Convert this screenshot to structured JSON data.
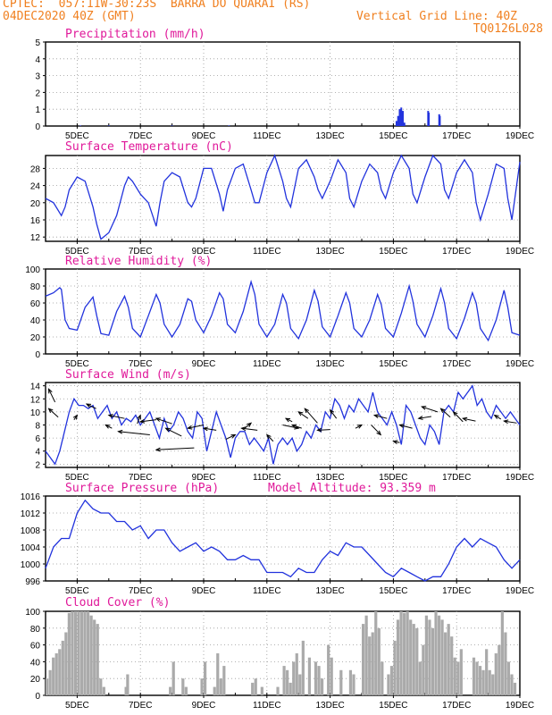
{
  "header": {
    "line1_left": "CPTEC:  057:11W-30:23S  BARRA DO QUARAI (RS)",
    "line2_left": "04DEC2020 40Z (GMT)",
    "line2_right": "Vertical Grid Line: 40Z",
    "line3_right": "TQ0126L028"
  },
  "colors": {
    "line": "#2233dd",
    "bar_precip": "#2233dd",
    "bar_cloud": "#aaaaaa",
    "title": "#e0199a",
    "header": "#f08020"
  },
  "x_axis": {
    "ticks": [
      5,
      7,
      9,
      11,
      13,
      15,
      17,
      19
    ],
    "tick_labels": [
      "5DEC",
      "7DEC",
      "9DEC",
      "11DEC",
      "13DEC",
      "15DEC",
      "17DEC",
      "19DEC"
    ],
    "range": [
      4.0,
      19.0
    ]
  },
  "chart_data": [
    {
      "id": "precip",
      "type": "bar",
      "title": "Precipitation (mm/h)",
      "ylim": [
        0,
        5
      ],
      "yticks": [
        0,
        1,
        2,
        3,
        4,
        5
      ],
      "grid": true,
      "x": [
        5.1,
        6.0,
        8.0,
        9.8,
        15.1,
        15.15,
        15.2,
        15.25,
        15.3,
        15.35,
        16.1,
        16.12,
        16.45,
        16.47
      ],
      "values": [
        0.03,
        0.03,
        0.03,
        0.03,
        0.3,
        0.6,
        1.0,
        1.1,
        0.9,
        0.2,
        0.9,
        0.8,
        0.7,
        0.6
      ]
    },
    {
      "id": "temp",
      "type": "line",
      "title": "Surface Temperature (nC)",
      "ylim": [
        11,
        31
      ],
      "yticks": [
        12,
        16,
        20,
        24,
        28
      ],
      "grid": true,
      "x": [
        4.0,
        4.25,
        4.5,
        4.62,
        4.75,
        5.0,
        5.25,
        5.5,
        5.62,
        5.75,
        6.0,
        6.25,
        6.5,
        6.62,
        6.75,
        7.0,
        7.25,
        7.5,
        7.62,
        7.75,
        8.0,
        8.25,
        8.5,
        8.62,
        8.75,
        9.0,
        9.25,
        9.5,
        9.62,
        9.75,
        10.0,
        10.25,
        10.5,
        10.62,
        10.75,
        11.0,
        11.25,
        11.5,
        11.62,
        11.75,
        12.0,
        12.25,
        12.5,
        12.62,
        12.75,
        13.0,
        13.25,
        13.5,
        13.62,
        13.75,
        14.0,
        14.25,
        14.5,
        14.62,
        14.75,
        15.0,
        15.25,
        15.5,
        15.62,
        15.75,
        16.0,
        16.25,
        16.5,
        16.62,
        16.75,
        17.0,
        17.25,
        17.5,
        17.62,
        17.75,
        18.0,
        18.25,
        18.5,
        18.62,
        18.75,
        19.0
      ],
      "y": [
        21,
        20,
        17,
        19,
        23,
        26,
        25,
        19,
        15,
        11.5,
        13,
        17,
        24,
        26,
        25,
        22,
        20,
        14.5,
        20,
        25,
        27,
        26,
        20,
        19,
        21,
        28,
        28,
        22,
        18,
        23,
        28,
        29,
        23,
        20,
        20,
        27,
        31,
        25,
        21,
        19,
        28,
        30,
        26,
        23,
        21,
        25,
        30,
        27,
        21,
        19,
        25,
        29,
        27,
        23,
        21,
        27,
        31,
        28,
        22,
        20,
        26,
        31,
        29,
        23,
        21,
        27,
        30,
        27,
        20,
        16,
        22,
        29,
        28,
        21,
        16,
        29.5
      ]
    },
    {
      "id": "rh",
      "type": "line",
      "title": "Relative Humidity (%)",
      "ylim": [
        0,
        100
      ],
      "yticks": [
        0,
        20,
        40,
        60,
        80,
        100
      ],
      "grid": true,
      "x": [
        4.0,
        4.25,
        4.45,
        4.5,
        4.62,
        4.75,
        5.0,
        5.25,
        5.5,
        5.62,
        5.75,
        6.0,
        6.25,
        6.5,
        6.62,
        6.75,
        7.0,
        7.25,
        7.5,
        7.62,
        7.75,
        8.0,
        8.25,
        8.5,
        8.62,
        8.75,
        9.0,
        9.25,
        9.5,
        9.62,
        9.75,
        10.0,
        10.25,
        10.5,
        10.62,
        10.75,
        11.0,
        11.25,
        11.5,
        11.62,
        11.75,
        12.0,
        12.25,
        12.5,
        12.62,
        12.75,
        13.0,
        13.25,
        13.5,
        13.62,
        13.75,
        14.0,
        14.25,
        14.5,
        14.62,
        14.75,
        15.0,
        15.25,
        15.5,
        15.62,
        15.75,
        16.0,
        16.25,
        16.5,
        16.62,
        16.75,
        17.0,
        17.25,
        17.5,
        17.62,
        17.75,
        18.0,
        18.25,
        18.5,
        18.62,
        18.75,
        19.0
      ],
      "y": [
        68,
        72,
        78,
        76,
        40,
        30,
        28,
        55,
        67,
        45,
        24,
        22,
        50,
        68,
        55,
        30,
        20,
        45,
        70,
        60,
        35,
        20,
        35,
        65,
        62,
        40,
        25,
        45,
        72,
        65,
        35,
        25,
        50,
        85,
        70,
        35,
        20,
        35,
        70,
        60,
        30,
        18,
        40,
        75,
        62,
        32,
        20,
        45,
        72,
        60,
        30,
        20,
        40,
        70,
        58,
        30,
        20,
        48,
        80,
        62,
        35,
        20,
        45,
        77,
        60,
        30,
        18,
        42,
        72,
        60,
        30,
        16,
        40,
        75,
        55,
        25,
        22
      ]
    },
    {
      "id": "wind",
      "type": "line",
      "title": "Surface Wind (m/s)",
      "ylim": [
        1.5,
        14.5
      ],
      "yticks": [
        2,
        4,
        6,
        8,
        10,
        12,
        14
      ],
      "grid": true,
      "x": [
        4.0,
        4.15,
        4.3,
        4.45,
        4.6,
        4.75,
        4.9,
        5.05,
        5.2,
        5.35,
        5.5,
        5.65,
        5.8,
        5.95,
        6.1,
        6.25,
        6.4,
        6.55,
        6.7,
        6.85,
        7.0,
        7.15,
        7.3,
        7.45,
        7.6,
        7.75,
        7.9,
        8.05,
        8.2,
        8.35,
        8.5,
        8.65,
        8.8,
        8.95,
        9.1,
        9.25,
        9.4,
        9.55,
        9.7,
        9.85,
        10.0,
        10.15,
        10.3,
        10.45,
        10.6,
        10.75,
        10.9,
        11.05,
        11.2,
        11.35,
        11.5,
        11.65,
        11.8,
        11.95,
        12.1,
        12.25,
        12.4,
        12.55,
        12.7,
        12.85,
        13.0,
        13.15,
        13.3,
        13.45,
        13.6,
        13.75,
        13.9,
        14.05,
        14.2,
        14.35,
        14.5,
        14.65,
        14.8,
        14.95,
        15.1,
        15.25,
        15.4,
        15.55,
        15.7,
        15.85,
        16.0,
        16.15,
        16.3,
        16.45,
        16.6,
        16.75,
        16.9,
        17.05,
        17.2,
        17.35,
        17.5,
        17.65,
        17.8,
        17.95,
        18.1,
        18.25,
        18.4,
        18.55,
        18.7,
        18.85,
        19.0
      ],
      "y": [
        4,
        3,
        2,
        4,
        7,
        10,
        12,
        11,
        11,
        10.5,
        11,
        9,
        10,
        11,
        9,
        10,
        8,
        9,
        8.5,
        9.5,
        8,
        9,
        10,
        8,
        6,
        9,
        7,
        8,
        10,
        9,
        7,
        6,
        10,
        9,
        4,
        7,
        10,
        8,
        6,
        3,
        6,
        7,
        7,
        5,
        6,
        5,
        4,
        6,
        2,
        5,
        6,
        5,
        6,
        4,
        5,
        7,
        6,
        8,
        7,
        10,
        9,
        12,
        11,
        9,
        11,
        10,
        12,
        11,
        10,
        13,
        10,
        9,
        8,
        10,
        8,
        5,
        11,
        10,
        8,
        6,
        5,
        8,
        7,
        5,
        10,
        11,
        10,
        13,
        12,
        13,
        14,
        11,
        12,
        10,
        9,
        11,
        10,
        9,
        10,
        9,
        8
      ]
    },
    {
      "id": "pressure",
      "type": "line",
      "title": "Surface Pressure (hPa)",
      "ylim": [
        996,
        1016
      ],
      "yticks": [
        996,
        1000,
        1004,
        1008,
        1012,
        1016
      ],
      "grid": true,
      "x": [
        4.0,
        4.25,
        4.5,
        4.75,
        5.0,
        5.25,
        5.5,
        5.75,
        6.0,
        6.25,
        6.5,
        6.75,
        7.0,
        7.25,
        7.5,
        7.75,
        8.0,
        8.25,
        8.5,
        8.75,
        9.0,
        9.25,
        9.5,
        9.75,
        10.0,
        10.25,
        10.5,
        10.75,
        11.0,
        11.25,
        11.5,
        11.75,
        12.0,
        12.25,
        12.5,
        12.75,
        13.0,
        13.25,
        13.5,
        13.75,
        14.0,
        14.25,
        14.5,
        14.75,
        15.0,
        15.25,
        15.5,
        15.75,
        16.0,
        16.25,
        16.5,
        16.75,
        17.0,
        17.25,
        17.5,
        17.75,
        18.0,
        18.25,
        18.5,
        18.75,
        19.0
      ],
      "y": [
        999,
        1004,
        1006,
        1006,
        1012,
        1015,
        1013,
        1012,
        1012,
        1010,
        1010,
        1008,
        1009,
        1006,
        1008,
        1008,
        1005,
        1003,
        1004,
        1005,
        1003,
        1004,
        1003,
        1001,
        1001,
        1002,
        1001,
        1001,
        998,
        998,
        998,
        997,
        999,
        998,
        998,
        1001,
        1003,
        1002,
        1005,
        1004,
        1004,
        1002,
        1000,
        998,
        997,
        999,
        998,
        997,
        996,
        997,
        997,
        1000,
        1004,
        1006,
        1004,
        1006,
        1005,
        1004,
        1001,
        999,
        1001
      ]
    },
    {
      "id": "cloud",
      "type": "bar",
      "title": "Cloud Cover (%)",
      "ylim": [
        0,
        100
      ],
      "yticks": [
        0,
        20,
        40,
        60,
        80,
        100
      ],
      "grid": true,
      "segments": [
        {
          "x": [
            4.0,
            4.1,
            4.2,
            4.3,
            4.4,
            4.5,
            4.6,
            4.7,
            4.8,
            4.9,
            5.0,
            5.1,
            5.2,
            5.3,
            5.4,
            5.5,
            5.6,
            5.7,
            5.8
          ],
          "values": [
            20,
            30,
            45,
            50,
            55,
            65,
            75,
            98,
            100,
            100,
            100,
            100,
            100,
            100,
            95,
            90,
            85,
            20,
            10
          ]
        },
        {
          "x": [
            6.5,
            6.55,
            7.9,
            8.0,
            8.3,
            8.4,
            8.9,
            9.0,
            9.3,
            9.4,
            9.5,
            9.6
          ],
          "values": [
            10,
            25,
            10,
            40,
            20,
            10,
            20,
            40,
            10,
            50,
            20,
            35
          ]
        },
        {
          "x": [
            10.5,
            10.6,
            10.8,
            11.3,
            11.5,
            11.6,
            11.7,
            11.8,
            11.9,
            12.0,
            12.1,
            12.3,
            12.5,
            12.6,
            12.7,
            12.9,
            13.0,
            13.3,
            13.6,
            13.7
          ],
          "values": [
            15,
            20,
            10,
            10,
            35,
            30,
            15,
            40,
            50,
            25,
            65,
            45,
            40,
            35,
            20,
            60,
            45,
            30,
            30,
            25
          ]
        },
        {
          "x": [
            14.0,
            14.1,
            14.2,
            14.3,
            14.4,
            14.5,
            14.6,
            14.8,
            14.9,
            15.0,
            15.1,
            15.2,
            15.3,
            15.4,
            15.5,
            15.6,
            15.7,
            15.8,
            15.9,
            16.0,
            16.1,
            16.2,
            16.3,
            16.4,
            16.5,
            16.6,
            16.7,
            16.8,
            16.9,
            17.0,
            17.1
          ],
          "values": [
            85,
            95,
            70,
            75,
            100,
            80,
            40,
            25,
            35,
            65,
            90,
            100,
            98,
            100,
            90,
            85,
            80,
            40,
            60,
            95,
            90,
            80,
            100,
            95,
            90,
            75,
            85,
            70,
            45,
            40,
            55
          ]
        },
        {
          "x": [
            17.5,
            17.6,
            17.7,
            17.8,
            17.9,
            18.0,
            18.1,
            18.2,
            18.3,
            18.4,
            18.5,
            18.6,
            18.7,
            18.8
          ],
          "values": [
            45,
            40,
            35,
            30,
            55,
            30,
            25,
            50,
            60,
            100,
            75,
            40,
            25,
            15
          ]
        }
      ]
    }
  ],
  "panel_extras": {
    "pressure_note": "Model Altitude: 93.359 m"
  }
}
